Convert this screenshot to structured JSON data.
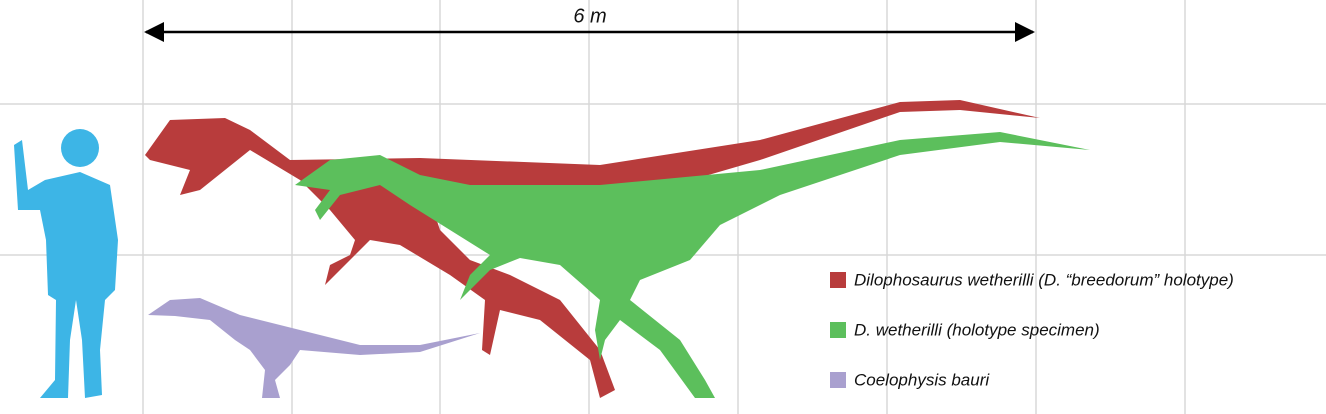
{
  "scale": {
    "label": "6 m"
  },
  "legend": [
    {
      "label": "Dilophosaurus wetherilli (D. “breedorum” holotype)",
      "color": "#b83c3c"
    },
    {
      "label": "D. wetherilli (holotype specimen)",
      "color": "#5cbf5c"
    },
    {
      "label": "Coelophysis bauri",
      "color": "#a9a0cf"
    }
  ]
}
